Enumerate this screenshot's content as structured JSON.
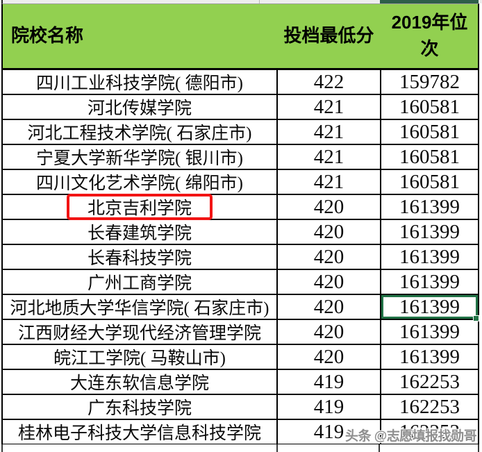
{
  "table": {
    "columns": [
      {
        "key": "name",
        "label": "院校名称"
      },
      {
        "key": "score",
        "label": "投档最低分"
      },
      {
        "key": "rank",
        "label": "2019年位次"
      }
    ],
    "rows": [
      {
        "name": "四川工业科技学院( 德阳市)",
        "score": "422",
        "rank": "159782"
      },
      {
        "name": "河北传媒学院",
        "score": "421",
        "rank": "160581"
      },
      {
        "name": "河北工程技术学院( 石家庄市)",
        "score": "421",
        "rank": "160581"
      },
      {
        "name": "宁夏大学新华学院( 银川市)",
        "score": "421",
        "rank": "160581"
      },
      {
        "name": "四川文化艺术学院( 绵阳市)",
        "score": "421",
        "rank": "160581"
      },
      {
        "name": "北京吉利学院",
        "score": "420",
        "rank": "161399"
      },
      {
        "name": "长春建筑学院",
        "score": "420",
        "rank": "161399"
      },
      {
        "name": "长春科技学院",
        "score": "420",
        "rank": "161399"
      },
      {
        "name": "广州工商学院",
        "score": "420",
        "rank": "161399"
      },
      {
        "name": "河北地质大学华信学院( 石家庄市)",
        "score": "420",
        "rank": "161399"
      },
      {
        "name": "江西财经大学现代经济管理学院",
        "score": "420",
        "rank": "161399"
      },
      {
        "name": "皖江工学院( 马鞍山市)",
        "score": "420",
        "rank": "161399"
      },
      {
        "name": "大连东软信息学院",
        "score": "419",
        "rank": "162253"
      },
      {
        "name": "广东科技学院",
        "score": "419",
        "rank": "162253"
      },
      {
        "name": "桂林电子科技大学信息科技学院",
        "score": "419",
        "rank": "162253"
      }
    ],
    "red_highlight_row_index": 5,
    "selected_cell": {
      "row_index": 9,
      "column": "rank"
    }
  },
  "watermark": {
    "text": "头条 @志愿填报找勋哥"
  },
  "colors": {
    "header_green": "#92d050",
    "dark_green_strip": "#2e5f49",
    "selection_green": "#217346",
    "highlight_red": "#f21414",
    "watermark_gray": "#8f8f8f",
    "grid_black": "#000000"
  }
}
